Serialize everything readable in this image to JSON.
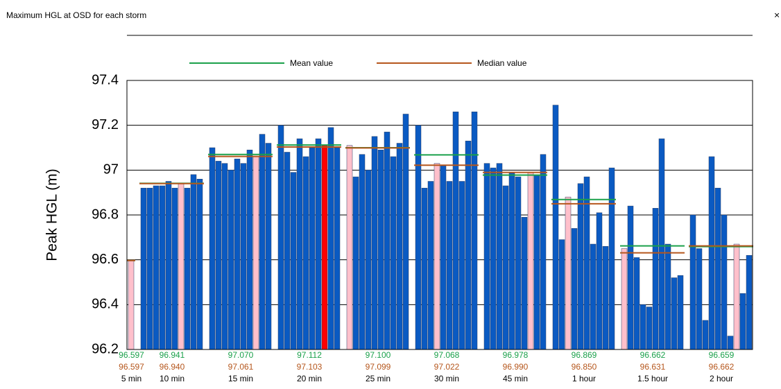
{
  "window": {
    "close": "×"
  },
  "chart_data": {
    "type": "bar",
    "title": "Maximum HGL at OSD for each storm",
    "ylabel": "Peak HGL (m)",
    "ylim": [
      96.2,
      97.4
    ],
    "yticks": [
      96.2,
      96.4,
      96.6,
      96.8,
      97,
      97.2,
      97.4
    ],
    "grid": true,
    "legend": [
      {
        "name": "Mean value",
        "color": "#1aa04a"
      },
      {
        "name": "Median value",
        "color": "#b5561c"
      }
    ],
    "groups": [
      {
        "name": "5 min",
        "values": [
          96.597
        ],
        "colors": [
          "#ffc0cb"
        ],
        "mean": 96.597,
        "mean_label": "96.597",
        "median": 96.597,
        "median_label": "96.597"
      },
      {
        "name": "10 min",
        "values": [
          96.92,
          96.92,
          96.93,
          96.93,
          96.95,
          96.92,
          96.94,
          96.92,
          96.98,
          96.96
        ],
        "colors": [
          "#0a5ac2",
          "#0a5ac2",
          "#0a5ac2",
          "#0a5ac2",
          "#0a5ac2",
          "#0a5ac2",
          "#ffc0cb",
          "#0a5ac2",
          "#0a5ac2",
          "#0a5ac2"
        ],
        "mean": 96.941,
        "mean_label": "96.941",
        "median": 96.94,
        "median_label": "96.940"
      },
      {
        "name": "15 min",
        "values": [
          97.1,
          97.04,
          97.03,
          97.0,
          97.05,
          97.03,
          97.09,
          97.06,
          97.16,
          97.12
        ],
        "colors": [
          "#0a5ac2",
          "#0a5ac2",
          "#0a5ac2",
          "#0a5ac2",
          "#0a5ac2",
          "#0a5ac2",
          "#0a5ac2",
          "#ffc0cb",
          "#0a5ac2",
          "#0a5ac2"
        ],
        "mean": 97.07,
        "mean_label": "97.070",
        "median": 97.061,
        "median_label": "97.061"
      },
      {
        "name": "20 min",
        "values": [
          97.2,
          97.08,
          96.99,
          97.14,
          97.06,
          97.1,
          97.14,
          97.11,
          97.19,
          97.1
        ],
        "colors": [
          "#0a5ac2",
          "#0a5ac2",
          "#0a5ac2",
          "#0a5ac2",
          "#0a5ac2",
          "#0a5ac2",
          "#0a5ac2",
          "#ff0000",
          "#0a5ac2",
          "#0a5ac2"
        ],
        "mean": 97.112,
        "mean_label": "97.112",
        "median": 97.103,
        "median_label": "97.103"
      },
      {
        "name": "25 min",
        "values": [
          97.11,
          96.97,
          97.07,
          97.0,
          97.15,
          97.09,
          97.17,
          97.06,
          97.12,
          97.25
        ],
        "colors": [
          "#ffc0cb",
          "#0a5ac2",
          "#0a5ac2",
          "#0a5ac2",
          "#0a5ac2",
          "#0a5ac2",
          "#0a5ac2",
          "#0a5ac2",
          "#0a5ac2",
          "#0a5ac2"
        ],
        "mean": 97.1,
        "mean_label": "97.100",
        "median": 97.099,
        "median_label": "97.099"
      },
      {
        "name": "30 min",
        "values": [
          97.2,
          96.92,
          96.95,
          97.03,
          97.02,
          96.95,
          97.26,
          96.95,
          97.13,
          97.26
        ],
        "colors": [
          "#0a5ac2",
          "#0a5ac2",
          "#0a5ac2",
          "#ffc0cb",
          "#0a5ac2",
          "#0a5ac2",
          "#0a5ac2",
          "#0a5ac2",
          "#0a5ac2",
          "#0a5ac2"
        ],
        "mean": 97.068,
        "mean_label": "97.068",
        "median": 97.022,
        "median_label": "97.022"
      },
      {
        "name": "45 min",
        "values": [
          97.03,
          97.01,
          97.03,
          96.93,
          96.99,
          96.97,
          96.79,
          96.99,
          96.98,
          97.07
        ],
        "colors": [
          "#0a5ac2",
          "#0a5ac2",
          "#0a5ac2",
          "#0a5ac2",
          "#0a5ac2",
          "#0a5ac2",
          "#0a5ac2",
          "#ffc0cb",
          "#0a5ac2",
          "#0a5ac2"
        ],
        "mean": 96.978,
        "mean_label": "96.978",
        "median": 96.99,
        "median_label": "96.990"
      },
      {
        "name": "1 hour",
        "values": [
          97.29,
          96.69,
          96.88,
          96.74,
          96.94,
          96.97,
          96.67,
          96.81,
          96.66,
          97.01
        ],
        "colors": [
          "#0a5ac2",
          "#0a5ac2",
          "#ffc0cb",
          "#0a5ac2",
          "#0a5ac2",
          "#0a5ac2",
          "#0a5ac2",
          "#0a5ac2",
          "#0a5ac2",
          "#0a5ac2"
        ],
        "mean": 96.869,
        "mean_label": "96.869",
        "median": 96.85,
        "median_label": "96.850"
      },
      {
        "name": "1.5 hour",
        "values": [
          96.65,
          96.84,
          96.61,
          96.4,
          96.39,
          96.83,
          97.14,
          96.67,
          96.52,
          96.53
        ],
        "colors": [
          "#ffc0cb",
          "#0a5ac2",
          "#0a5ac2",
          "#0a5ac2",
          "#0a5ac2",
          "#0a5ac2",
          "#0a5ac2",
          "#0a5ac2",
          "#0a5ac2",
          "#0a5ac2"
        ],
        "mean": 96.662,
        "mean_label": "96.662",
        "median": 96.631,
        "median_label": "96.631"
      },
      {
        "name": "2 hour",
        "values": [
          96.8,
          96.65,
          96.33,
          97.06,
          96.92,
          96.8,
          96.26,
          96.67,
          96.45,
          96.62
        ],
        "colors": [
          "#0a5ac2",
          "#0a5ac2",
          "#0a5ac2",
          "#0a5ac2",
          "#0a5ac2",
          "#0a5ac2",
          "#0a5ac2",
          "#ffc0cb",
          "#0a5ac2",
          "#0a5ac2"
        ],
        "mean": 96.659,
        "mean_label": "96.659",
        "median": 96.662,
        "median_label": "96.662"
      }
    ]
  }
}
